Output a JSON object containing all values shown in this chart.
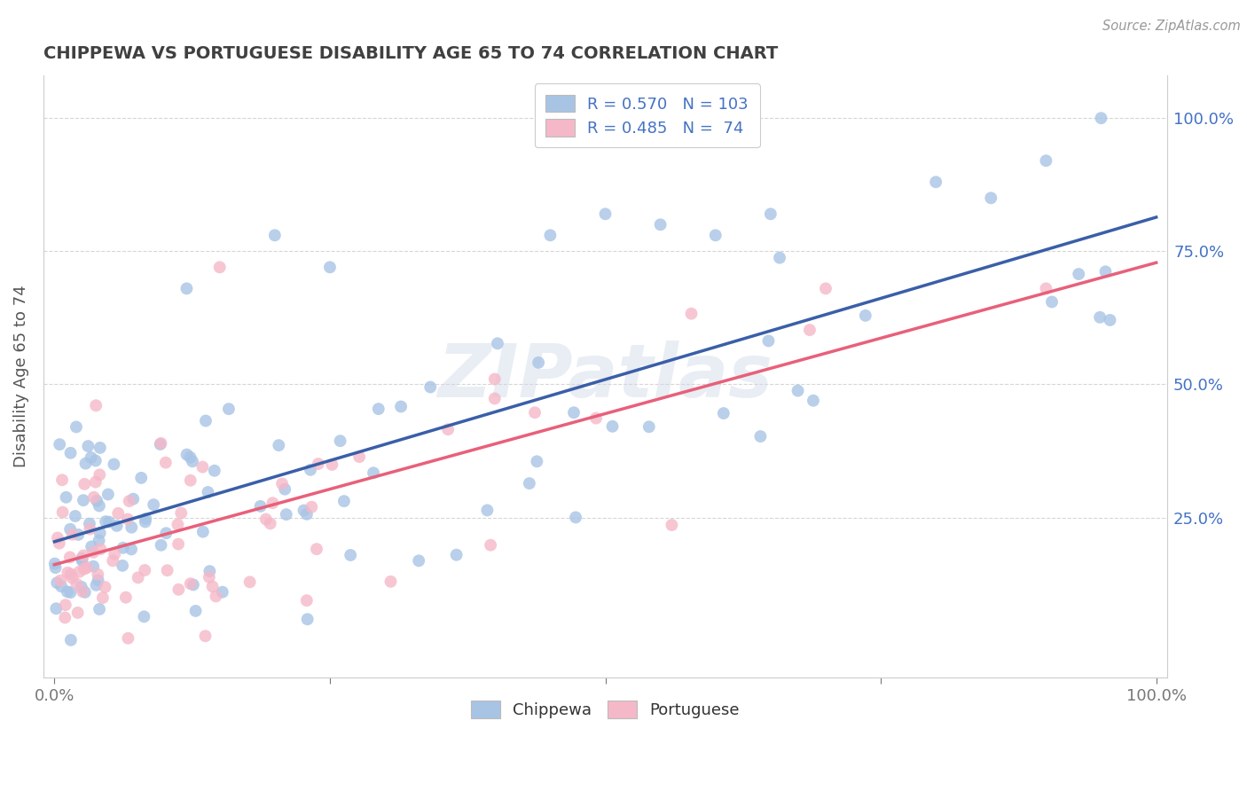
{
  "title": "CHIPPEWA VS PORTUGUESE DISABILITY AGE 65 TO 74 CORRELATION CHART",
  "source_text": "Source: ZipAtlas.com",
  "ylabel": "Disability Age 65 to 74",
  "chippewa_color": "#a8c4e5",
  "portuguese_color": "#f5b8c8",
  "chippewa_line_color": "#3a5fa8",
  "portuguese_line_color": "#e8607a",
  "chippewa_R": 0.57,
  "chippewa_N": 103,
  "portuguese_R": 0.485,
  "portuguese_N": 74,
  "watermark": "ZIPatlas",
  "background_color": "#ffffff",
  "grid_color": "#cccccc",
  "title_color": "#404040",
  "ytick_color": "#4472c4",
  "legend_R_N_color": "#4472c4"
}
